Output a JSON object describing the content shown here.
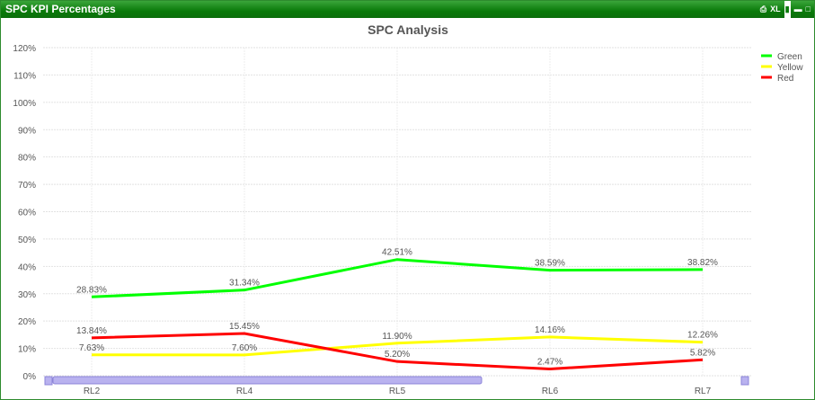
{
  "window": {
    "title": "SPC KPI Percentages",
    "controls": [
      "print-icon",
      "excel-icon",
      "chart-type-icon",
      "minimize-icon",
      "maximize-icon"
    ],
    "xl_label": "XL"
  },
  "chart_data": {
    "type": "line",
    "title": "SPC Analysis",
    "categories": [
      "RL2",
      "RL4",
      "RL5",
      "RL6",
      "RL7"
    ],
    "series": [
      {
        "name": "Green",
        "color": "#00ff00",
        "values": [
          28.83,
          31.34,
          42.51,
          38.59,
          38.82
        ],
        "labels": [
          "28.83%",
          "31.34%",
          "42.51%",
          "38.59%",
          "38.82%"
        ]
      },
      {
        "name": "Yellow",
        "color": "#ffff00",
        "values": [
          7.63,
          7.6,
          11.9,
          14.16,
          12.26
        ],
        "labels": [
          "7.63%",
          "7.60%",
          "11.90%",
          "14.16%",
          "12.26%"
        ]
      },
      {
        "name": "Red",
        "color": "#ff0000",
        "values": [
          13.84,
          15.45,
          5.2,
          2.47,
          5.82
        ],
        "labels": [
          "13.84%",
          "15.45%",
          "5.20%",
          "2.47%",
          "5.82%"
        ]
      }
    ],
    "ylim": [
      0,
      120
    ],
    "yticks": [
      "0%",
      "10%",
      "20%",
      "30%",
      "40%",
      "50%",
      "60%",
      "70%",
      "80%",
      "90%",
      "100%",
      "110%",
      "120%"
    ],
    "grid": true,
    "legend": "top-right",
    "xlabel": "",
    "ylabel": ""
  }
}
